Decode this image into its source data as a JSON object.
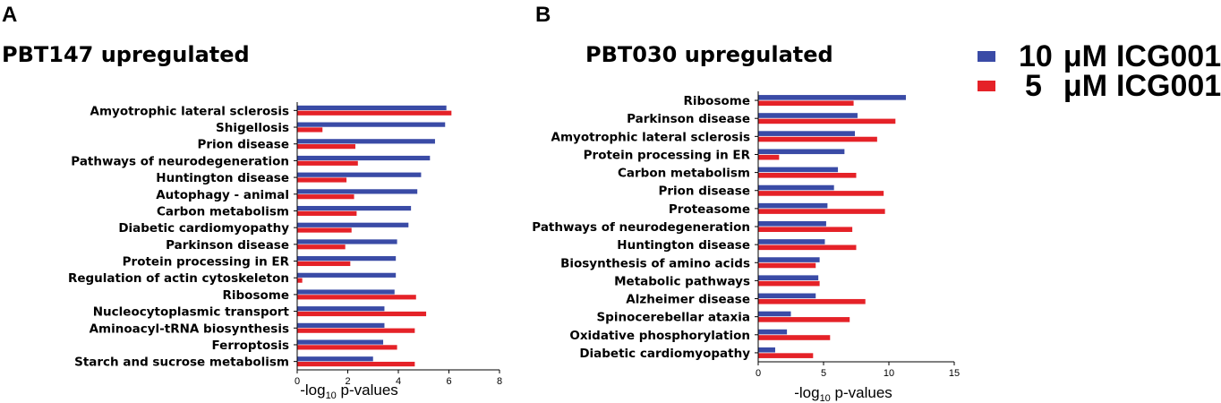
{
  "colors": {
    "series1": "#3a4ba6",
    "series2": "#e52228"
  },
  "legend": {
    "items": [
      {
        "number": "10",
        "unit": "μM",
        "label": "ICG001"
      },
      {
        "number": "5",
        "unit": "μM",
        "label": "ICG001"
      }
    ]
  },
  "chart_data": [
    {
      "type": "bar",
      "orientation": "horizontal",
      "panel": "A",
      "title": "PBT147 upregulated",
      "xlabel": {
        "prefix": "-log",
        "sub": "10",
        "suffix": " p-values"
      },
      "xlim": [
        0,
        8
      ],
      "xticks": [
        0,
        2,
        4,
        6,
        8
      ],
      "categories": [
        "Amyotrophic lateral sclerosis",
        "Shigellosis",
        "Prion disease",
        "Pathways of neurodegeneration",
        "Huntington disease",
        "Autophagy - animal",
        "Carbon metabolism",
        "Diabetic cardiomyopathy",
        "Parkinson disease",
        "Protein processing in ER",
        "Regulation of actin cytoskeleton",
        "Ribosome",
        "Nucleocytoplasmic transport",
        "Aminoacyl-tRNA biosynthesis",
        "Ferroptosis",
        "Starch and sucrose metabolism"
      ],
      "series": [
        {
          "name": "10 μM ICG001",
          "values": [
            5.9,
            5.85,
            5.45,
            5.25,
            4.9,
            4.75,
            4.5,
            4.4,
            3.95,
            3.9,
            3.9,
            3.85,
            3.45,
            3.45,
            3.4,
            3.0
          ]
        },
        {
          "name": "5 μM ICG001",
          "values": [
            6.1,
            1.0,
            2.3,
            2.4,
            1.95,
            2.25,
            2.35,
            2.15,
            1.9,
            2.1,
            0.2,
            4.7,
            5.1,
            4.65,
            3.95,
            4.65
          ]
        }
      ]
    },
    {
      "type": "bar",
      "orientation": "horizontal",
      "panel": "B",
      "title": "PBT030 upregulated",
      "xlabel": {
        "prefix": "-log",
        "sub": "10",
        "suffix": " p-values"
      },
      "xlim": [
        0,
        15
      ],
      "xticks": [
        0,
        5,
        10,
        15
      ],
      "categories": [
        "Ribosome",
        "Parkinson disease",
        "Amyotrophic lateral sclerosis",
        "Protein processing in ER",
        "Carbon metabolism",
        "Prion disease",
        "Proteasome",
        "Pathways of neurodegeneration",
        "Huntington disease",
        "Biosynthesis of amino acids",
        "Metabolic pathways",
        "Alzheimer disease",
        "Spinocerebellar ataxia",
        "Oxidative phosphorylation",
        "Diabetic cardiomyopathy"
      ],
      "series": [
        {
          "name": "10 μM ICG001",
          "values": [
            11.3,
            7.6,
            7.4,
            6.6,
            6.1,
            5.8,
            5.3,
            5.2,
            5.1,
            4.7,
            4.6,
            4.4,
            2.5,
            2.2,
            1.3
          ]
        },
        {
          "name": "5 μM ICG001",
          "values": [
            7.3,
            10.5,
            9.1,
            1.6,
            7.5,
            9.6,
            9.7,
            7.2,
            7.5,
            4.4,
            4.7,
            8.2,
            7.0,
            5.5,
            4.2
          ]
        }
      ]
    }
  ]
}
